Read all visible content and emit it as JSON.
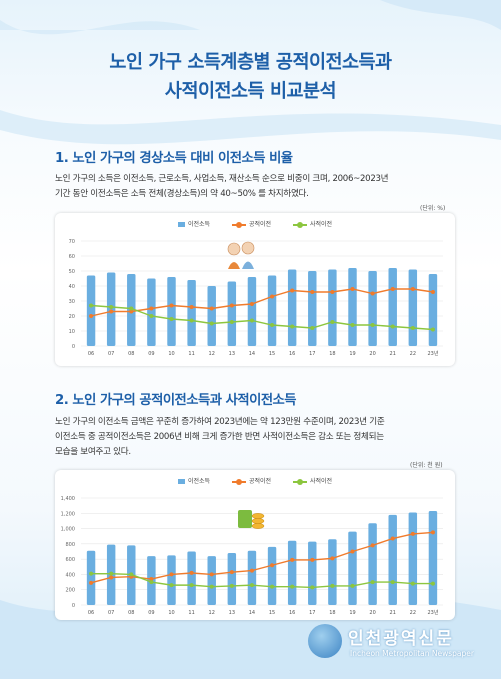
{
  "page": {
    "title_line1": "노인 가구 소득계층별 공적이전소득과",
    "title_line2": "사적이전소득 비교분석"
  },
  "section1": {
    "heading": "1. 노인 가구의 경상소득 대비 이전소득 비율",
    "text_line1": "노인 가구의 소득은 이전소득, 근로소득, 사업소득, 재산소득 순으로 비중이 크며, 2006~2023년",
    "text_line2": "기간 동안 이전소득은 소득 전체(경상소득)의 약 40~50% 를 차지하였다.",
    "unit": "(단위: %)"
  },
  "section2": {
    "heading": "2. 노인 가구의 공적이전소득과 사적이전소득",
    "text_line1": "노인 가구의 이전소득 금액은 꾸준히 증가하여 2023년에는 약 123만원 수준이며, 2023년 기준",
    "text_line2": "이전소득 중 공적이전소득은 2006년 비해 크게 증가한 반면 사적이전소득은 감소 또는 정체되는",
    "text_line3": "모습을 보여주고 있다.",
    "unit": "(단위: 천 원)"
  },
  "colors": {
    "bar": "#6aaee0",
    "public": "#f07b2c",
    "private": "#8cc63f",
    "title": "#1d5fa8"
  },
  "logo": {
    "name": "인천광역신문",
    "english": "Incheon Metropolitan Newspaper"
  },
  "chart_data": [
    {
      "type": "bar+line",
      "categories": [
        "06",
        "07",
        "08",
        "09",
        "10",
        "11",
        "12",
        "13",
        "14",
        "15",
        "16",
        "17",
        "18",
        "19",
        "20",
        "21",
        "22",
        "23년"
      ],
      "series": [
        {
          "name": "이전소득",
          "type": "bar",
          "values": [
            47,
            49,
            48,
            45,
            46,
            44,
            40,
            43,
            46,
            47,
            51,
            50,
            51,
            52,
            50,
            52,
            51,
            48
          ]
        },
        {
          "name": "공적이전",
          "type": "line",
          "values": [
            20,
            23,
            23,
            25,
            27,
            26,
            25,
            27,
            28,
            33,
            37,
            36,
            36,
            38,
            35,
            38,
            38,
            36
          ]
        },
        {
          "name": "사적이전",
          "type": "line",
          "values": [
            27,
            26,
            25,
            20,
            18,
            17,
            15,
            16,
            17,
            14,
            13,
            12,
            16,
            14,
            14,
            13,
            12,
            11
          ]
        }
      ],
      "ylim": [
        0,
        70
      ],
      "yticks": [
        0,
        10,
        20,
        30,
        40,
        50,
        60,
        70
      ]
    },
    {
      "type": "bar+line",
      "categories": [
        "06",
        "07",
        "08",
        "09",
        "10",
        "11",
        "12",
        "13",
        "14",
        "15",
        "16",
        "17",
        "18",
        "19",
        "20",
        "21",
        "22",
        "23년"
      ],
      "series": [
        {
          "name": "이전소득",
          "type": "bar",
          "values": [
            710,
            790,
            780,
            640,
            650,
            700,
            640,
            680,
            710,
            760,
            840,
            830,
            860,
            960,
            1070,
            1180,
            1210,
            1230
          ]
        },
        {
          "name": "공적이전",
          "type": "line",
          "values": [
            290,
            360,
            370,
            340,
            400,
            420,
            400,
            430,
            450,
            520,
            590,
            590,
            610,
            700,
            780,
            870,
            930,
            950
          ]
        },
        {
          "name": "사적이전",
          "type": "line",
          "values": [
            410,
            410,
            400,
            300,
            260,
            260,
            240,
            250,
            260,
            240,
            240,
            230,
            250,
            250,
            300,
            300,
            280,
            280
          ]
        }
      ],
      "ylim": [
        0,
        1400
      ],
      "yticks": [
        0,
        200,
        400,
        600,
        800,
        1000,
        1200,
        1400
      ]
    }
  ]
}
